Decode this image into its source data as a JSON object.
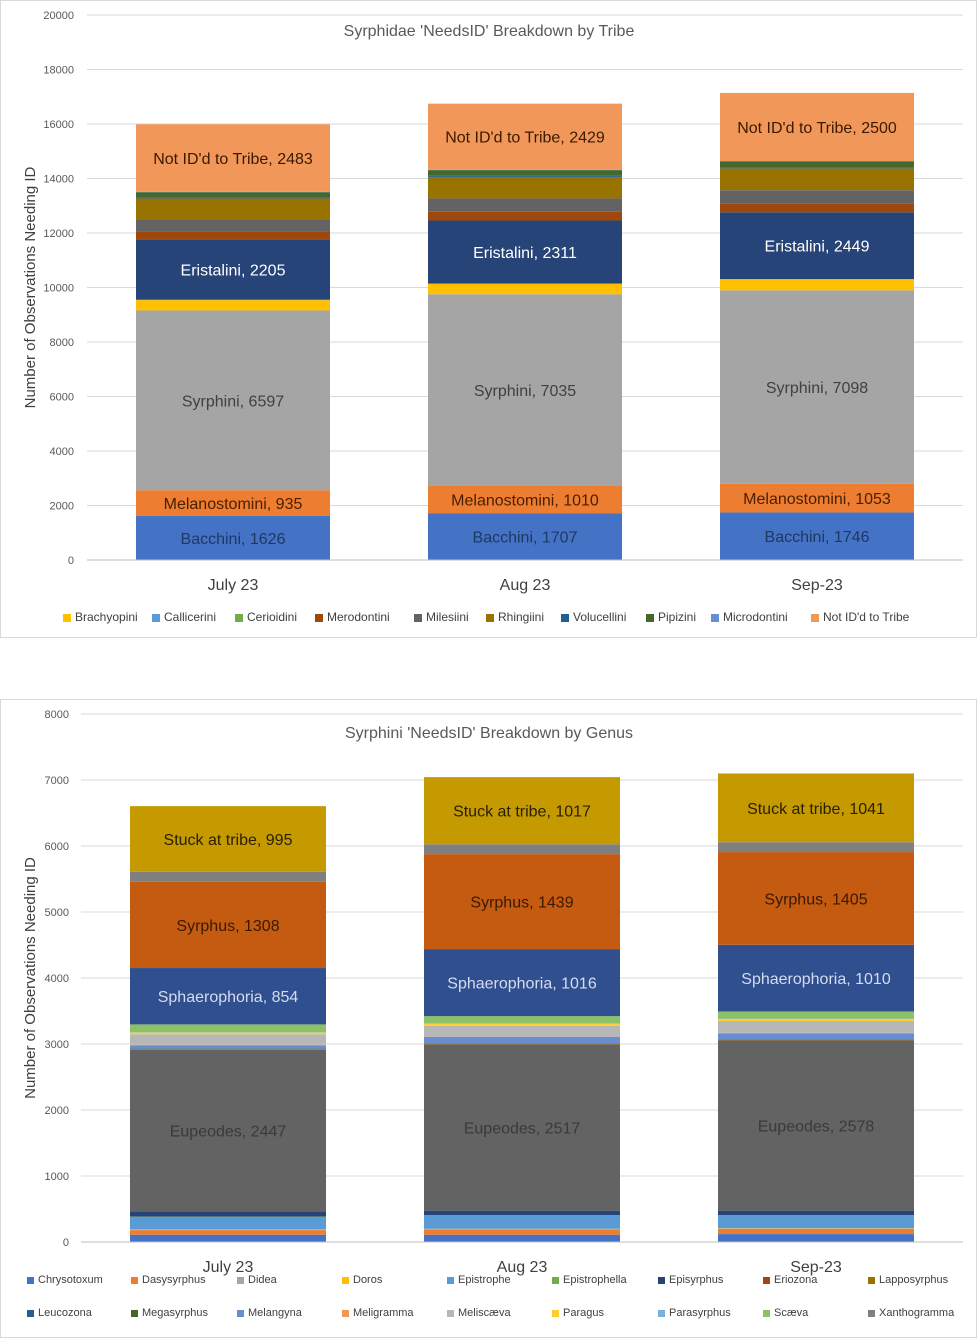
{
  "chart_data": [
    {
      "type": "bar",
      "stacked": true,
      "title": "Syrphidae 'NeedsID' Breakdown by Tribe",
      "xlabel": "",
      "ylabel": "Number of Observations Needing ID",
      "ylim": [
        0,
        20000
      ],
      "yticks": [
        0,
        2000,
        4000,
        6000,
        8000,
        10000,
        12000,
        14000,
        16000,
        18000,
        20000
      ],
      "categories": [
        "July 23",
        "Aug 23",
        "Sep-23"
      ],
      "legend_position": "bottom",
      "series": [
        {
          "name": "Bacchini",
          "color": "#4472c4",
          "values": [
            1626,
            1707,
            1746
          ],
          "in_legend": false,
          "show_label": true,
          "label_color": "#1f3864"
        },
        {
          "name": "Melanostomini",
          "color": "#ed7d31",
          "values": [
            935,
            1010,
            1053
          ],
          "in_legend": false,
          "show_label": true,
          "label_color": "#4a2000"
        },
        {
          "name": "Syrphini",
          "color": "#a5a5a5",
          "values": [
            6597,
            7035,
            7098
          ],
          "in_legend": false,
          "show_label": true,
          "label_color": "#404040"
        },
        {
          "name": "Brachyopini",
          "color": "#ffc000",
          "values": [
            380,
            380,
            400
          ],
          "in_legend": true,
          "show_label": false
        },
        {
          "name": "Callicerini",
          "color": "#5b9bd5",
          "values": [
            10,
            10,
            10
          ],
          "in_legend": true,
          "show_label": false
        },
        {
          "name": "Cerioidini",
          "color": "#70ad47",
          "values": [
            5,
            5,
            5
          ],
          "in_legend": true,
          "show_label": false
        },
        {
          "name": "Eristalini",
          "color": "#264478",
          "values": [
            2205,
            2311,
            2449
          ],
          "in_legend": false,
          "show_label": true,
          "label_color": "#ffffff"
        },
        {
          "name": "Merodontini",
          "color": "#9e480e",
          "values": [
            300,
            320,
            330
          ],
          "in_legend": true,
          "show_label": false
        },
        {
          "name": "Milesiini",
          "color": "#636363",
          "values": [
            420,
            490,
            480
          ],
          "in_legend": true,
          "show_label": false
        },
        {
          "name": "Rhingiini",
          "color": "#997300",
          "values": [
            790,
            790,
            800
          ],
          "in_legend": true,
          "show_label": false
        },
        {
          "name": "Volucellini",
          "color": "#255e91",
          "values": [
            40,
            40,
            40
          ],
          "in_legend": true,
          "show_label": false
        },
        {
          "name": "Pipizini",
          "color": "#43682b",
          "values": [
            190,
            210,
            220
          ],
          "in_legend": true,
          "show_label": false
        },
        {
          "name": "Microdontini",
          "color": "#698ed0",
          "values": [
            10,
            10,
            10
          ],
          "in_legend": true,
          "show_label": false
        },
        {
          "name": "Not ID'd to Tribe",
          "color": "#f1975a",
          "values": [
            2483,
            2429,
            2500
          ],
          "in_legend": true,
          "show_label": true,
          "label_color": "#3a1a00"
        }
      ]
    },
    {
      "type": "bar",
      "stacked": true,
      "title": "Syrphini 'NeedsID' Breakdown by Genus",
      "xlabel": "",
      "ylabel": "Number of Observations Needing ID",
      "ylim": [
        0,
        8000
      ],
      "yticks": [
        0,
        1000,
        2000,
        3000,
        4000,
        5000,
        6000,
        7000,
        8000
      ],
      "categories": [
        "July 23",
        "Aug 23",
        "Sep-23"
      ],
      "legend_position": "bottom",
      "series": [
        {
          "name": "Chrysotoxum",
          "color": "#4472c4",
          "values": [
            110,
            110,
            120
          ],
          "in_legend": true,
          "show_label": false
        },
        {
          "name": "Dasysyrphus",
          "color": "#ed7d31",
          "values": [
            70,
            80,
            80
          ],
          "in_legend": true,
          "show_label": false
        },
        {
          "name": "Didea",
          "color": "#a5a5a5",
          "values": [
            5,
            5,
            5
          ],
          "in_legend": true,
          "show_label": false
        },
        {
          "name": "Doros",
          "color": "#ffc000",
          "values": [
            5,
            5,
            5
          ],
          "in_legend": true,
          "show_label": false
        },
        {
          "name": "Epistrophe",
          "color": "#5b9bd5",
          "values": [
            190,
            200,
            190
          ],
          "in_legend": true,
          "show_label": false
        },
        {
          "name": "Epistrophella",
          "color": "#70ad47",
          "values": [
            5,
            5,
            5
          ],
          "in_legend": true,
          "show_label": false
        },
        {
          "name": "Episyrphus",
          "color": "#264478",
          "values": [
            80,
            70,
            70
          ],
          "in_legend": true,
          "show_label": false
        },
        {
          "name": "Eupeodes",
          "color": "#636363",
          "values": [
            2447,
            2517,
            2578
          ],
          "in_legend": false,
          "show_label": true,
          "label_color": "#3a3a3a"
        },
        {
          "name": "Eriozona",
          "color": "#9e480e",
          "values": [
            5,
            5,
            5
          ],
          "in_legend": true,
          "show_label": false
        },
        {
          "name": "Lapposyrphus",
          "color": "#997300",
          "values": [
            5,
            5,
            5
          ],
          "in_legend": true,
          "show_label": false
        },
        {
          "name": "Leucozona",
          "color": "#255e91",
          "values": [
            5,
            5,
            5
          ],
          "in_legend": true,
          "show_label": false
        },
        {
          "name": "Megasyrphus",
          "color": "#43682b",
          "values": [
            5,
            5,
            5
          ],
          "in_legend": true,
          "show_label": false
        },
        {
          "name": "Melangyna",
          "color": "#698ed0",
          "values": [
            50,
            100,
            90
          ],
          "in_legend": true,
          "show_label": false
        },
        {
          "name": "Meligramma",
          "color": "#f1975a",
          "values": [
            5,
            5,
            5
          ],
          "in_legend": true,
          "show_label": false
        },
        {
          "name": "Meliscaeva",
          "color": "#b7b7b7",
          "values": [
            160,
            160,
            180
          ],
          "in_legend": true,
          "show_label": false
        },
        {
          "name": "Paragus",
          "color": "#ffcd33",
          "values": [
            25,
            30,
            30
          ],
          "in_legend": true,
          "show_label": false
        },
        {
          "name": "Parasyrphus",
          "color": "#7cafdd",
          "values": [
            5,
            5,
            5
          ],
          "in_legend": true,
          "show_label": false
        },
        {
          "name": "Scaeva",
          "color": "#8cc168",
          "values": [
            120,
            110,
            110
          ],
          "in_legend": true,
          "show_label": false
        },
        {
          "name": "Sphaerophoria",
          "color": "#2f4f8f",
          "values": [
            854,
            1016,
            1010
          ],
          "in_legend": false,
          "show_label": true,
          "label_color": "#d6dcef"
        },
        {
          "name": "Syrphus",
          "color": "#c55a11",
          "values": [
            1308,
            1439,
            1405
          ],
          "in_legend": false,
          "show_label": true,
          "label_color": "#3a1a00"
        },
        {
          "name": "Xanthogramma",
          "color": "#7f7f7f",
          "values": [
            150,
            150,
            150
          ],
          "in_legend": true,
          "show_label": false
        },
        {
          "name": "Stuck at tribe",
          "color": "#c49a00",
          "values": [
            995,
            1017,
            1041
          ],
          "in_legend": false,
          "show_label": true,
          "label_color": "#2a2000"
        }
      ],
      "legend_order": [
        "Chrysotoxum",
        "Dasysyrphus",
        "Didea",
        "Doros",
        "Epistrophe",
        "Epistrophella",
        "Episyrphus",
        "Eriozona",
        "Lapposyrphus",
        "Leucozona",
        "Megasyrphus",
        "Melangyna",
        "Meligramma",
        "Meliscaeva",
        "Paragus",
        "Parasyrphus",
        "Scaeva",
        "Xanthogramma"
      ],
      "legend_display_names": {
        "Meliscaeva": "Meliscæva",
        "Scaeva": "Scæva"
      }
    }
  ]
}
